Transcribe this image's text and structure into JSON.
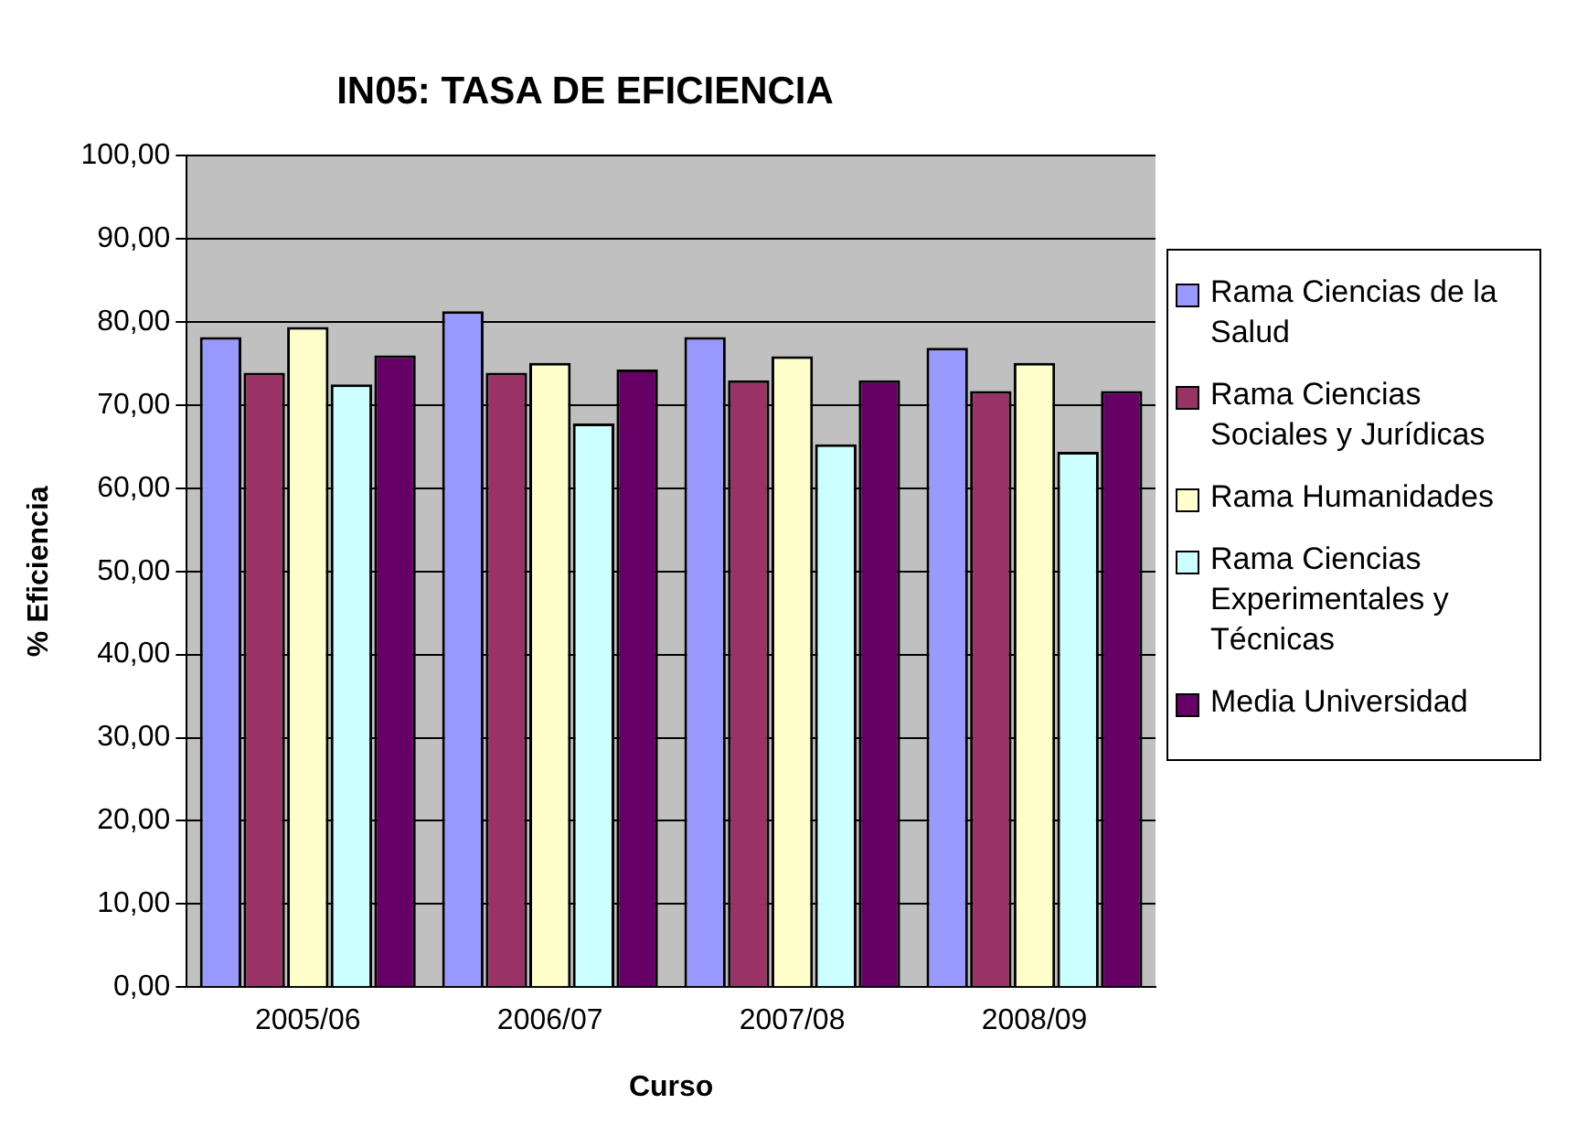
{
  "chart_data": {
    "type": "bar",
    "title": "IN05: TASA DE EFICIENCIA",
    "xlabel": "Curso",
    "ylabel": "% Eficiencia",
    "categories": [
      "2005/06",
      "2006/07",
      "2007/08",
      "2008/09"
    ],
    "series": [
      {
        "name": "Rama Ciencias de la Salud",
        "color": "#9999ff",
        "values": [
          78.2,
          81.3,
          78.2,
          76.9
        ]
      },
      {
        "name": "Rama Ciencias Sociales y Jurídicas",
        "color": "#993366",
        "values": [
          73.9,
          73.9,
          73.0,
          71.7
        ]
      },
      {
        "name": "Rama Humanidades",
        "color": "#ffffcc",
        "values": [
          79.4,
          75.1,
          75.9,
          75.1
        ]
      },
      {
        "name": "Rama Ciencias Experimentales y Técnicas",
        "color": "#ccffff",
        "values": [
          72.5,
          67.8,
          65.3,
          64.4
        ]
      },
      {
        "name": "Media Universidad",
        "color": "#660066",
        "values": [
          76.0,
          74.3,
          73.0,
          71.7
        ]
      }
    ],
    "ylim": [
      0,
      100
    ],
    "yticks": [
      {
        "value": 0,
        "label": "0,00"
      },
      {
        "value": 10,
        "label": "10,00"
      },
      {
        "value": 20,
        "label": "20,00"
      },
      {
        "value": 30,
        "label": "30,00"
      },
      {
        "value": 40,
        "label": "40,00"
      },
      {
        "value": 50,
        "label": "50,00"
      },
      {
        "value": 60,
        "label": "60,00"
      },
      {
        "value": 70,
        "label": "70,00"
      },
      {
        "value": 80,
        "label": "80,00"
      },
      {
        "value": 90,
        "label": "90,00"
      },
      {
        "value": 100,
        "label": "100,00"
      }
    ],
    "grid": "y",
    "legend": "right"
  }
}
